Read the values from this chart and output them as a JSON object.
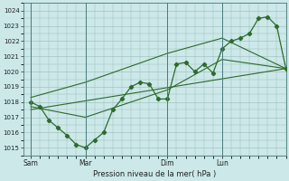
{
  "bg_color": "#cce8e8",
  "line_color": "#2d6b2d",
  "grid_color": "#99bbbb",
  "xlabel": "Pression niveau de la mer( hPa )",
  "ylim": [
    1014.5,
    1024.5
  ],
  "yticks": [
    1015,
    1016,
    1017,
    1018,
    1019,
    1020,
    1021,
    1022,
    1023,
    1024
  ],
  "day_labels": [
    "Sam",
    "Mar",
    "Dim",
    "Lun"
  ],
  "day_positions": [
    0,
    36,
    90,
    126
  ],
  "vline_positions": [
    0,
    36,
    90,
    126
  ],
  "xlim": [
    -5,
    168
  ],
  "main_x": [
    0,
    6,
    12,
    18,
    24,
    30,
    36,
    42,
    48,
    54,
    60,
    66,
    72,
    78,
    84,
    90,
    96,
    102,
    108,
    114,
    120,
    126,
    132,
    138,
    144,
    150,
    156,
    162,
    168
  ],
  "main_y": [
    1018.0,
    1017.7,
    1016.8,
    1016.3,
    1015.8,
    1015.2,
    1015.0,
    1015.5,
    1016.0,
    1017.5,
    1018.2,
    1019.0,
    1019.3,
    1019.2,
    1018.2,
    1018.2,
    1020.5,
    1020.6,
    1020.0,
    1020.5,
    1019.9,
    1021.5,
    1022.0,
    1022.2,
    1022.5,
    1023.5,
    1023.6,
    1023.0,
    1020.2
  ],
  "upper_x": [
    0,
    36,
    90,
    126,
    168
  ],
  "upper_y": [
    1018.3,
    1019.3,
    1021.2,
    1022.2,
    1020.2
  ],
  "lower_x": [
    0,
    36,
    90,
    126,
    168
  ],
  "lower_y": [
    1017.7,
    1017.0,
    1018.8,
    1020.8,
    1020.2
  ],
  "trend_x": [
    0,
    168
  ],
  "trend_y": [
    1017.5,
    1020.2
  ]
}
